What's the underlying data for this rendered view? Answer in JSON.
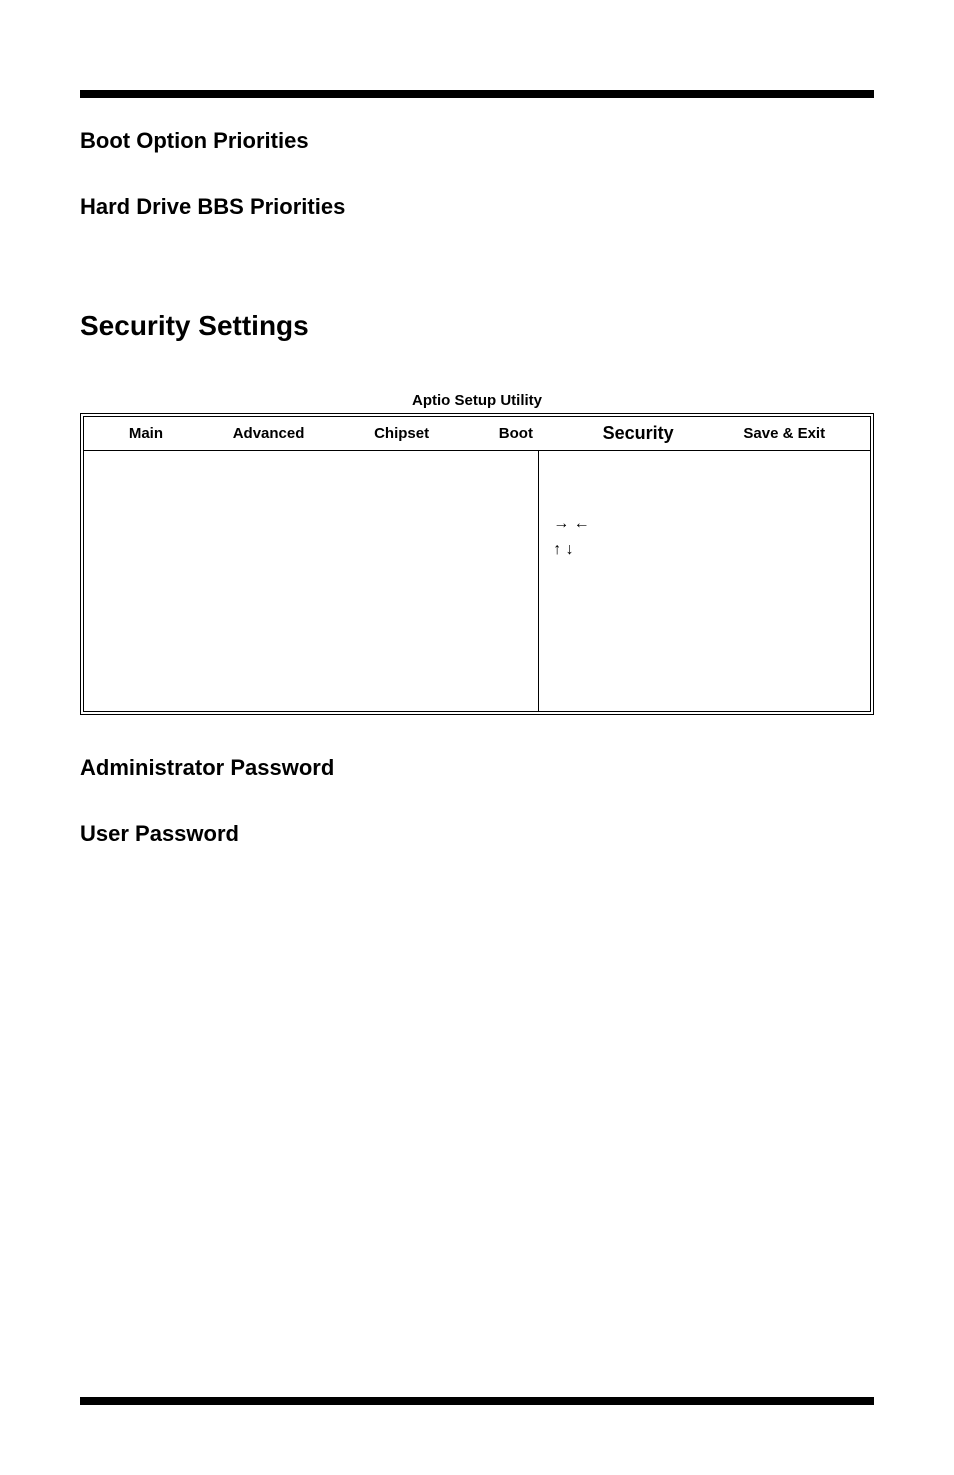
{
  "headings": {
    "boot_option": "Boot Option Priorities",
    "hard_drive": "Hard Drive BBS Priorities",
    "security_settings": "Security Settings",
    "admin_password": "Administrator Password",
    "user_password": "User Password"
  },
  "bios": {
    "title": "Aptio Setup Utility",
    "tabs": {
      "main": "Main",
      "advanced": "Advanced",
      "chipset": "Chipset",
      "boot": "Boot",
      "security": "Security",
      "save_exit": "Save & Exit"
    },
    "arrows": {
      "horizontal": "→  ←",
      "vertical": "↑ ↓"
    }
  },
  "colors": {
    "text": "#000000",
    "background": "#ffffff",
    "bar": "#000000"
  }
}
